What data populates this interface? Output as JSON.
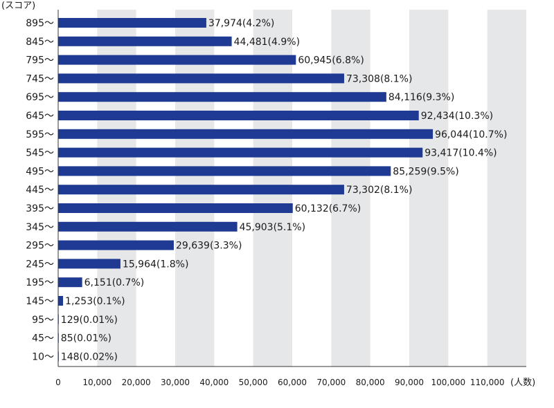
{
  "chart_data": {
    "type": "bar",
    "orientation": "horizontal",
    "y_unit_label": "(スコア)",
    "x_unit_label": "(人数)",
    "categories": [
      "895～",
      "845～",
      "795～",
      "745～",
      "695～",
      "645～",
      "595～",
      "545～",
      "495～",
      "445～",
      "395～",
      "345～",
      "295～",
      "245～",
      "195～",
      "145～",
      "95～",
      "45～",
      "10～"
    ],
    "values": [
      37974,
      44481,
      60945,
      73308,
      84116,
      92434,
      96044,
      93417,
      85259,
      73302,
      60132,
      45903,
      29639,
      15964,
      6151,
      1253,
      129,
      85,
      148
    ],
    "value_labels": [
      "37,974(4.2%)",
      "44,481(4.9%)",
      "60,945(6.8%)",
      "73,308(8.1%)",
      "84,116(9.3%)",
      "92,434(10.3%)",
      "96,044(10.7%)",
      "93,417(10.4%)",
      "85,259(9.5%)",
      "73,302(8.1%)",
      "60,132(6.7%)",
      "45,903(5.1%)",
      "29,639(3.3%)",
      "15,964(1.8%)",
      "6,151(0.7%)",
      "1,253(0.1%)",
      "129(0.01%)",
      "85(0.01%)",
      "148(0.02%)"
    ],
    "x_ticks": [
      "0",
      "10,000",
      "20,000",
      "30,000",
      "40,000",
      "50,000",
      "60,000",
      "70,000",
      "80,000",
      "90,000",
      "100,000",
      "110,000"
    ],
    "xlim": [
      0,
      120000
    ],
    "grid": "alternating vertical bands",
    "colors": {
      "bar": "#1f3a93",
      "band": "#e6e7e9",
      "axis": "#333333"
    }
  }
}
